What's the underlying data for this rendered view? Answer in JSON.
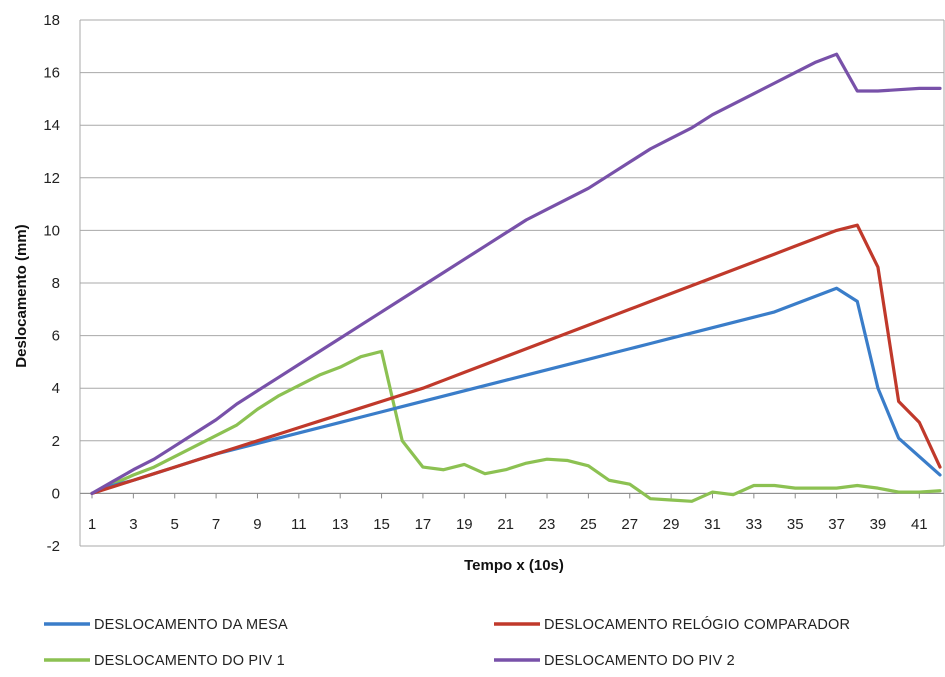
{
  "chart_data": {
    "type": "line",
    "xlabel": "Tempo x (10s)",
    "ylabel": "Deslocamento (mm)",
    "ylim": [
      -2,
      18
    ],
    "yticks": [
      -2,
      0,
      2,
      4,
      6,
      8,
      10,
      12,
      14,
      16,
      18
    ],
    "xlim": [
      1,
      42
    ],
    "xticks": [
      1,
      3,
      5,
      7,
      9,
      11,
      13,
      15,
      17,
      19,
      21,
      23,
      25,
      27,
      29,
      31,
      33,
      35,
      37,
      39,
      41
    ],
    "grid": "horizontal",
    "legend_position": "bottom",
    "x": [
      1,
      2,
      3,
      4,
      5,
      6,
      7,
      8,
      9,
      10,
      11,
      12,
      13,
      14,
      15,
      16,
      17,
      18,
      19,
      20,
      21,
      22,
      23,
      24,
      25,
      26,
      27,
      28,
      29,
      30,
      31,
      32,
      33,
      34,
      35,
      36,
      37,
      38,
      39,
      40,
      41,
      42
    ],
    "series": [
      {
        "name": "DESLOCAMENTO DA MESA",
        "color": "#3a7dc9",
        "values": [
          0,
          0.3,
          0.5,
          0.75,
          1.0,
          1.25,
          1.5,
          1.7,
          1.9,
          2.1,
          2.3,
          2.5,
          2.7,
          2.9,
          3.1,
          3.3,
          3.5,
          3.7,
          3.9,
          4.1,
          4.3,
          4.5,
          4.7,
          4.9,
          5.1,
          5.3,
          5.5,
          5.7,
          5.9,
          6.1,
          6.3,
          6.5,
          6.7,
          6.9,
          7.2,
          7.5,
          7.8,
          7.3,
          4.0,
          2.1,
          1.4,
          0.7
        ]
      },
      {
        "name": "DESLOCAMENTO RELÓGIO COMPARADOR",
        "color": "#c0392b",
        "values": [
          0,
          0.25,
          0.5,
          0.75,
          1.0,
          1.25,
          1.5,
          1.75,
          2.0,
          2.25,
          2.5,
          2.75,
          3.0,
          3.25,
          3.5,
          3.75,
          4.0,
          4.3,
          4.6,
          4.9,
          5.2,
          5.5,
          5.8,
          6.1,
          6.4,
          6.7,
          7.0,
          7.3,
          7.6,
          7.9,
          8.2,
          8.5,
          8.8,
          9.1,
          9.4,
          9.7,
          10.0,
          10.2,
          8.6,
          3.5,
          2.7,
          1.0
        ]
      },
      {
        "name": "DESLOCAMENTO DO PIV 1",
        "color": "#8cc152",
        "values": [
          0,
          0.35,
          0.7,
          1.0,
          1.4,
          1.8,
          2.2,
          2.6,
          3.2,
          3.7,
          4.1,
          4.5,
          4.8,
          5.2,
          5.4,
          2.0,
          1.0,
          0.9,
          1.1,
          0.75,
          0.9,
          1.15,
          1.3,
          1.25,
          1.05,
          0.5,
          0.35,
          -0.2,
          -0.25,
          -0.3,
          0.05,
          -0.05,
          0.3,
          0.3,
          0.2,
          0.2,
          0.2,
          0.3,
          0.2,
          0.05,
          0.05,
          0.1
        ]
      },
      {
        "name": "DESLOCAMENTO DO PIV 2",
        "color": "#7851a9",
        "values": [
          0,
          0.45,
          0.9,
          1.3,
          1.8,
          2.3,
          2.8,
          3.4,
          3.9,
          4.4,
          4.9,
          5.4,
          5.9,
          6.4,
          6.9,
          7.4,
          7.9,
          8.4,
          8.9,
          9.4,
          9.9,
          10.4,
          10.8,
          11.2,
          11.6,
          12.1,
          12.6,
          13.1,
          13.5,
          13.9,
          14.4,
          14.8,
          15.2,
          15.6,
          16.0,
          16.4,
          16.7,
          15.3,
          15.3,
          15.35,
          15.4,
          15.4
        ]
      }
    ]
  }
}
